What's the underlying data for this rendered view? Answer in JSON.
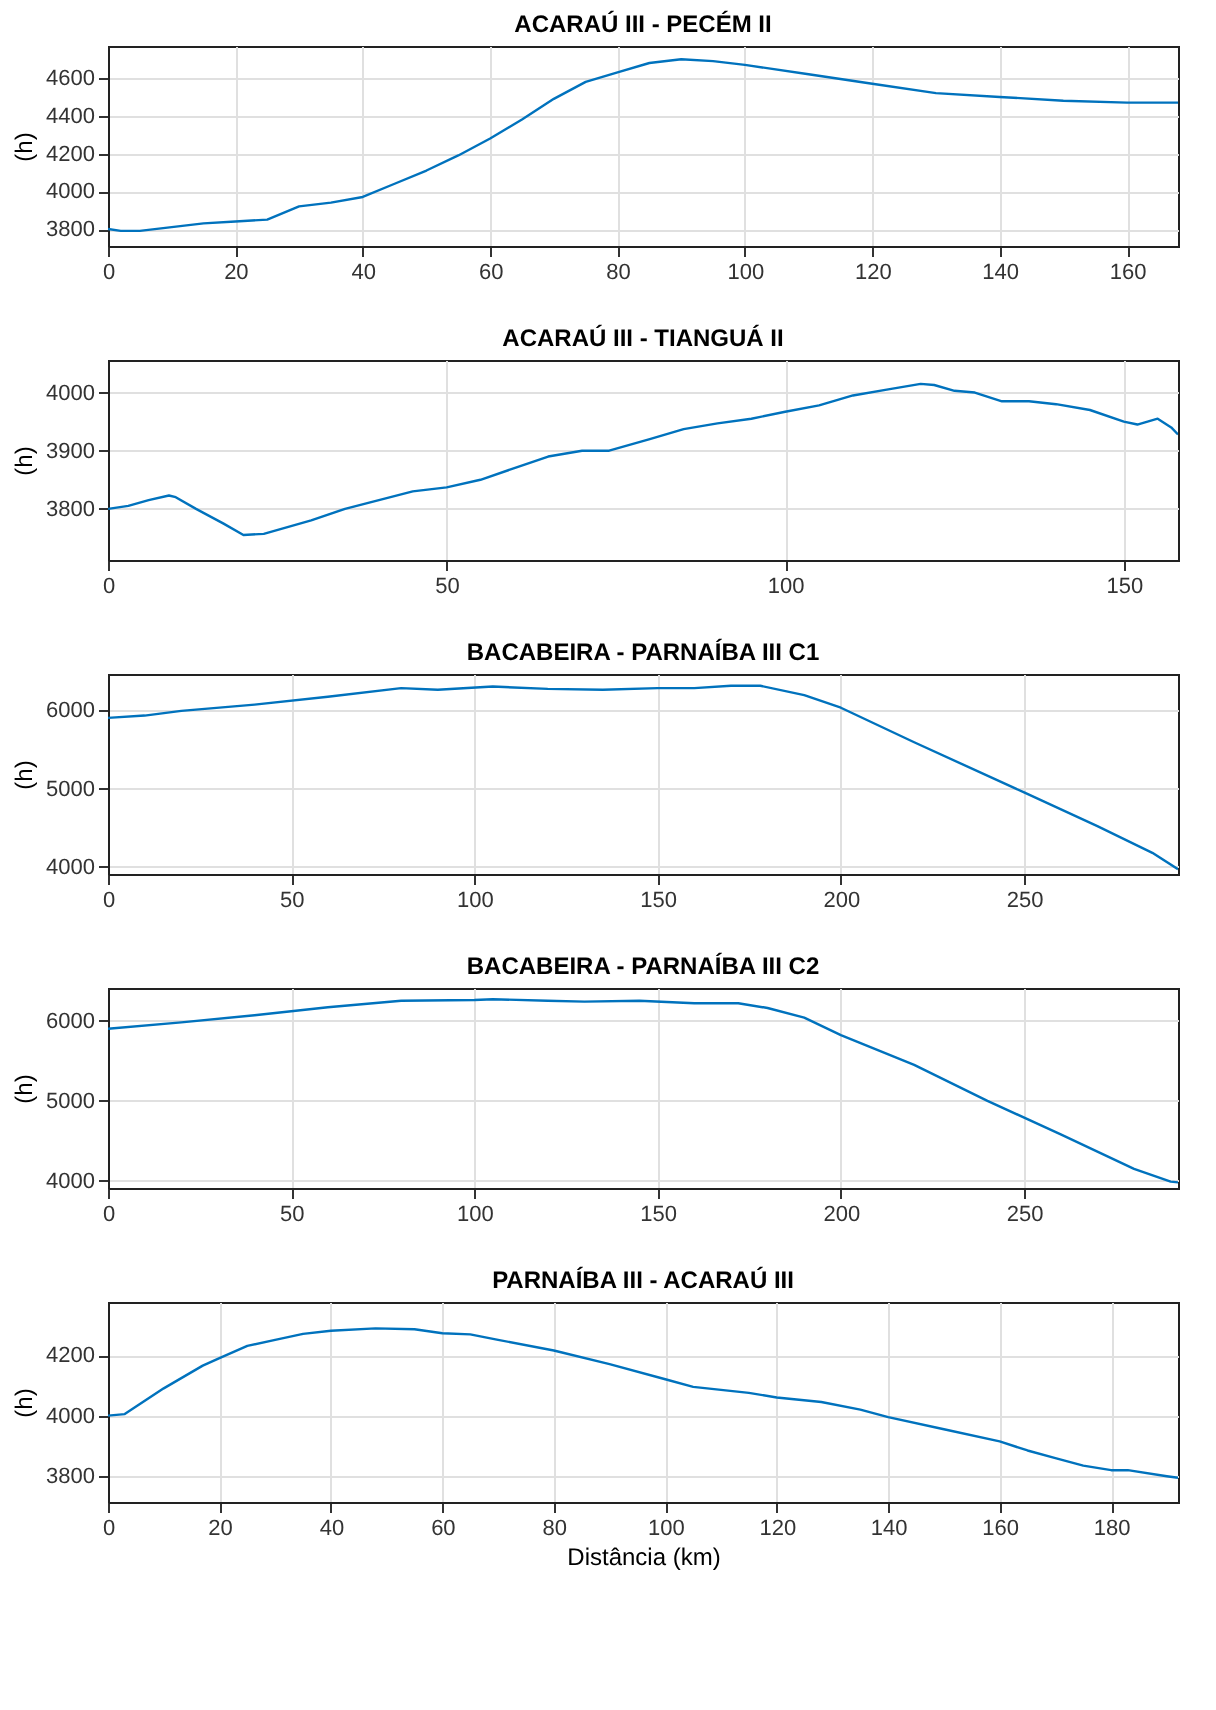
{
  "chart_data": [
    {
      "type": "line",
      "title": "ACARAÚ III - PECÉM II",
      "ylabel": "(h)",
      "grid": true,
      "xlim": [
        0,
        168
      ],
      "ylim": [
        3710,
        4770
      ],
      "xticks": [
        0,
        20,
        40,
        60,
        80,
        100,
        120,
        140,
        160
      ],
      "yticks": [
        3800,
        4000,
        4200,
        4400,
        4600
      ],
      "series": [
        {
          "color": "#0072bd",
          "x": [
            0,
            2,
            5,
            10,
            15,
            20,
            25,
            30,
            35,
            40,
            45,
            50,
            55,
            60,
            65,
            70,
            75,
            80,
            85,
            90,
            95,
            100,
            110,
            120,
            130,
            140,
            150,
            160,
            168
          ],
          "values": [
            3800,
            3790,
            3790,
            3810,
            3830,
            3840,
            3850,
            3920,
            3940,
            3970,
            4040,
            4110,
            4190,
            4280,
            4380,
            4490,
            4580,
            4630,
            4680,
            4700,
            4690,
            4670,
            4620,
            4570,
            4520,
            4500,
            4480,
            4470,
            4470
          ]
        }
      ]
    },
    {
      "type": "line",
      "title": "ACARAÚ III -  TIANGUÁ II",
      "ylabel": "(h)",
      "grid": true,
      "xlim": [
        0,
        158
      ],
      "ylim": [
        3712,
        4056
      ],
      "xticks": [
        0,
        50,
        100,
        150
      ],
      "yticks": [
        3800,
        3900,
        4000
      ],
      "series": [
        {
          "color": "#0072bd",
          "x": [
            0,
            3,
            6,
            9,
            10,
            13,
            17,
            20,
            23,
            30,
            35,
            40,
            45,
            50,
            55,
            60,
            65,
            70,
            74,
            80,
            85,
            90,
            95,
            100,
            105,
            110,
            115,
            120,
            122,
            125,
            128,
            132,
            136,
            140,
            145,
            150,
            152,
            155,
            157,
            158
          ],
          "values": [
            3800,
            3805,
            3815,
            3823,
            3820,
            3800,
            3775,
            3755,
            3757,
            3780,
            3800,
            3815,
            3830,
            3837,
            3850,
            3870,
            3890,
            3900,
            3900,
            3920,
            3937,
            3947,
            3955,
            3967,
            3978,
            3995,
            4005,
            4015,
            4013,
            4003,
            4000,
            3985,
            3985,
            3980,
            3970,
            3950,
            3945,
            3955,
            3940,
            3928
          ]
        }
      ]
    },
    {
      "type": "line",
      "title": "BACABEIRA - PARNAÍBA III C1",
      "ylabel": "(h)",
      "grid": true,
      "xlim": [
        0,
        292
      ],
      "ylim": [
        3910,
        6460
      ],
      "xticks": [
        0,
        50,
        100,
        150,
        200,
        250
      ],
      "yticks": [
        4000,
        5000,
        6000
      ],
      "series": [
        {
          "color": "#0072bd",
          "x": [
            0,
            10,
            20,
            40,
            60,
            80,
            90,
            105,
            120,
            135,
            150,
            160,
            170,
            178,
            190,
            200,
            220,
            250,
            270,
            285,
            292
          ],
          "values": [
            5900,
            5930,
            5990,
            6070,
            6170,
            6280,
            6260,
            6300,
            6270,
            6260,
            6280,
            6280,
            6310,
            6310,
            6190,
            6030,
            5590,
            4950,
            4520,
            4180,
            3970
          ]
        }
      ]
    },
    {
      "type": "line",
      "title": "BACABEIRA - PARNAÍBA III C2",
      "ylabel": "(h)",
      "grid": true,
      "xlim": [
        0,
        292
      ],
      "ylim": [
        3910,
        6410
      ],
      "xticks": [
        0,
        50,
        100,
        150,
        200,
        250
      ],
      "yticks": [
        4000,
        5000,
        6000
      ],
      "series": [
        {
          "color": "#0072bd",
          "x": [
            0,
            20,
            40,
            60,
            80,
            100,
            105,
            120,
            130,
            145,
            160,
            172,
            180,
            190,
            200,
            220,
            240,
            260,
            280,
            290,
            292
          ],
          "values": [
            5900,
            5980,
            6070,
            6170,
            6250,
            6260,
            6270,
            6250,
            6240,
            6250,
            6220,
            6220,
            6160,
            6040,
            5820,
            5450,
            5000,
            4580,
            4150,
            3990,
            3980
          ]
        }
      ]
    },
    {
      "type": "line",
      "title": "PARNAÍBA III - ACARAÚ III",
      "xlabel": "Distância (km)",
      "ylabel": "(h)",
      "grid": true,
      "xlim": [
        0,
        192
      ],
      "ylim": [
        3715,
        4375
      ],
      "xticks": [
        0,
        20,
        40,
        60,
        80,
        100,
        120,
        140,
        160,
        180
      ],
      "yticks": [
        3800,
        4000,
        4200
      ],
      "series": [
        {
          "color": "#0072bd",
          "x": [
            0,
            3,
            10,
            17,
            20,
            25,
            30,
            35,
            40,
            48,
            55,
            60,
            65,
            70,
            80,
            90,
            100,
            105,
            115,
            120,
            128,
            135,
            140,
            150,
            160,
            165,
            170,
            175,
            180,
            183,
            190,
            192
          ],
          "values": [
            4000,
            4005,
            4090,
            4165,
            4190,
            4230,
            4250,
            4270,
            4280,
            4288,
            4285,
            4272,
            4268,
            4250,
            4215,
            4170,
            4120,
            4095,
            4075,
            4060,
            4045,
            4020,
            3995,
            3955,
            3915,
            3885,
            3860,
            3835,
            3820,
            3820,
            3800,
            3795
          ]
        }
      ]
    }
  ]
}
